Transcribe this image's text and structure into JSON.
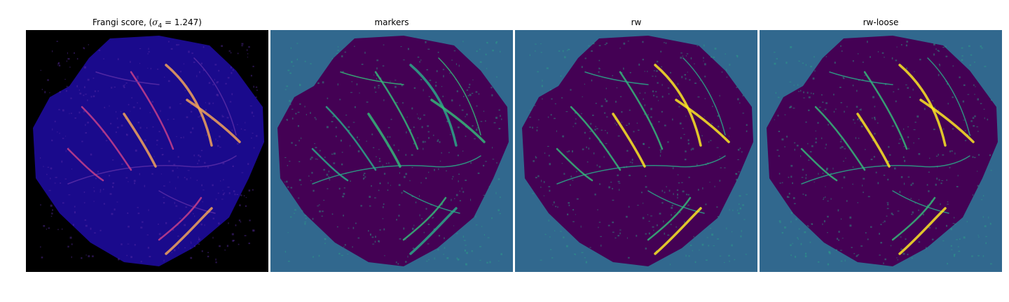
{
  "panels": [
    {
      "title_prefix": "Frangi score, (",
      "title_sigma": "σ",
      "title_sub": "4",
      "title_eq": " = 1.247",
      "title_suffix": ")",
      "background": "#000000",
      "tissue_color": "#1a0a8c",
      "vessel_colors": [
        "#5b2da6",
        "#c73f8a",
        "#f2a35a"
      ]
    },
    {
      "title": "markers",
      "background": "#31688e",
      "tissue_color": "#440154",
      "vessel_colors": [
        "#2ca788",
        "#35b779"
      ]
    },
    {
      "title": "rw",
      "background": "#31688e",
      "tissue_color": "#440154",
      "vessel_colors": [
        "#2ca788",
        "#35b779",
        "#fde725"
      ]
    },
    {
      "title": "rw-loose",
      "background": "#31688e",
      "tissue_color": "#440154",
      "vessel_colors": [
        "#2ca788",
        "#35b779",
        "#fde725"
      ]
    }
  ]
}
